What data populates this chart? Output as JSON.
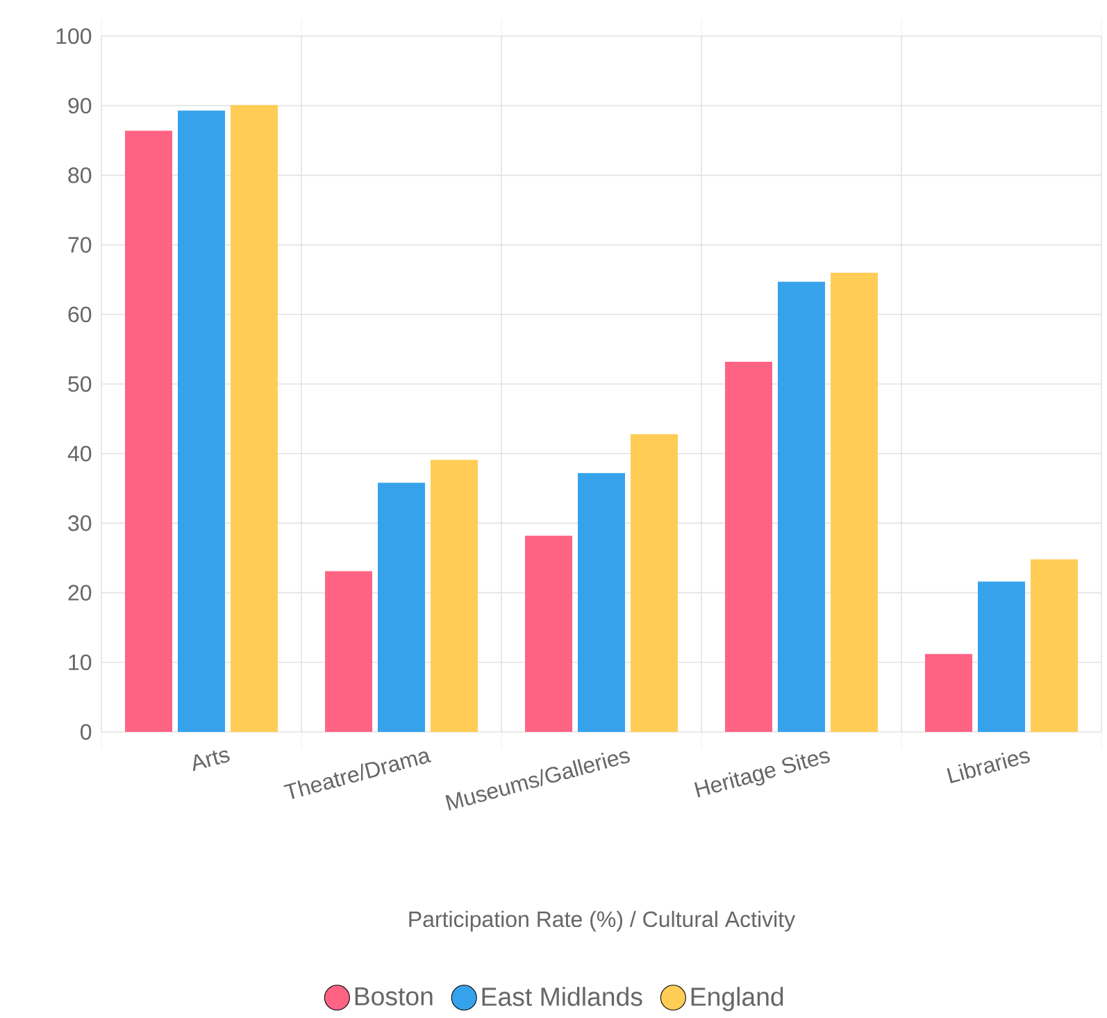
{
  "chart_data": {
    "type": "bar",
    "xlabel": "Participation Rate (%) / Cultural Activity",
    "categories": [
      "Arts",
      "Theatre/Drama",
      "Museums/Galleries",
      "Heritage Sites",
      "Libraries"
    ],
    "series": [
      {
        "name": "Boston",
        "color": "#ff6384",
        "values": [
          86.4,
          23.1,
          28.2,
          53.2,
          11.2
        ]
      },
      {
        "name": "East Midlands",
        "color": "#36a2eb",
        "values": [
          89.3,
          35.8,
          37.2,
          64.7,
          21.6
        ]
      },
      {
        "name": "England",
        "color": "#ffcd56",
        "values": [
          90.1,
          39.1,
          42.8,
          66.0,
          24.8
        ]
      }
    ],
    "ylim": [
      0,
      100
    ],
    "yticks": [
      0,
      10,
      20,
      30,
      40,
      50,
      60,
      70,
      80,
      90,
      100
    ],
    "grid": true,
    "legend": "bottom",
    "marker": "circle"
  }
}
